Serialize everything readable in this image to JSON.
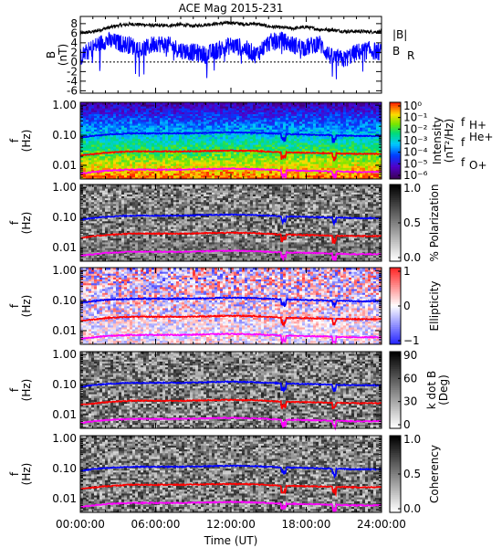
{
  "title": "ACE Mag 2015-231",
  "xlabel": "Time (UT)",
  "x_ticks": [
    "00:00:00",
    "06:00:00",
    "12:00:00",
    "18:00:00",
    "24:00:00"
  ],
  "colors": {
    "B_total": "#000000",
    "B_R": "#0000ff",
    "f_H": "#0000ff",
    "f_He": "#ff0000",
    "f_O": "#ff00ff"
  },
  "legend": {
    "top": [
      "|B|",
      "B_R"
    ],
    "gyro": [
      "f_H+",
      "f_He+",
      "f_O+"
    ]
  },
  "chart_data": [
    {
      "type": "line",
      "panel": "B",
      "ylabel": "B (nT)",
      "ylim": [
        -6.5,
        9.5
      ],
      "y_ticks": [
        -6,
        -4,
        -2,
        0,
        2,
        4,
        6,
        8
      ],
      "x_hours": [
        0,
        1,
        2,
        3,
        4,
        5,
        6,
        7,
        8,
        9,
        10,
        11,
        12,
        13,
        14,
        15,
        16,
        17,
        18,
        19,
        20,
        21,
        22,
        23,
        24
      ],
      "series": [
        {
          "name": "|B|",
          "values": [
            6.0,
            6.3,
            7.0,
            7.6,
            7.9,
            7.8,
            7.6,
            7.6,
            7.8,
            7.5,
            7.8,
            8.0,
            8.2,
            7.9,
            8.0,
            7.4,
            7.2,
            7.0,
            7.3,
            6.8,
            6.7,
            6.4,
            6.4,
            6.3,
            6.3
          ]
        },
        {
          "name": "B_R",
          "values": [
            1.0,
            3.0,
            4.5,
            4.0,
            3.5,
            2.5,
            4.0,
            3.5,
            2.5,
            2.0,
            1.5,
            2.5,
            3.5,
            3.0,
            1.5,
            4.0,
            4.5,
            3.5,
            3.0,
            4.0,
            1.0,
            0.5,
            2.0,
            2.5,
            2.0
          ]
        }
      ]
    },
    {
      "type": "heatmap",
      "panel": "Intensity",
      "ylabel": "f (Hz)",
      "y_scale": "log",
      "y_ticks": [
        "1.00",
        "0.10",
        "0.01"
      ],
      "colorbar_label": "Intensity (nT²/Hz)",
      "colorbar_ticks": [
        "10⁰",
        "10⁻¹",
        "10⁻²",
        "10⁻³",
        "10⁻⁴",
        "10⁻⁵",
        "10⁻⁶"
      ]
    },
    {
      "type": "heatmap",
      "panel": "Polarization",
      "ylabel": "f (Hz)",
      "y_scale": "log",
      "y_ticks": [
        "1.00",
        "0.10",
        "0.01"
      ],
      "colorbar_label": "% Polarization",
      "colorbar_ticks": [
        "1.0",
        "0.5",
        "0.0"
      ]
    },
    {
      "type": "heatmap",
      "panel": "Ellipticity",
      "ylabel": "f (Hz)",
      "y_scale": "log",
      "y_ticks": [
        "1.00",
        "0.10",
        "0.01"
      ],
      "colorbar_label": "Ellipticity",
      "colorbar_ticks": [
        "1",
        "0",
        "−1"
      ]
    },
    {
      "type": "heatmap",
      "panel": "kdotB",
      "ylabel": "f (Hz)",
      "y_scale": "log",
      "y_ticks": [
        "1.00",
        "0.10",
        "0.01"
      ],
      "colorbar_label": "k dot B (Deg)",
      "colorbar_ticks": [
        "90",
        "60",
        "30",
        "0"
      ]
    },
    {
      "type": "heatmap",
      "panel": "Coherency",
      "ylabel": "f (Hz)",
      "y_scale": "log",
      "y_ticks": [
        "1.00",
        "0.10",
        "0.01"
      ],
      "colorbar_label": "Coherency",
      "colorbar_ticks": [
        "1.0",
        "0.5",
        "0.0"
      ]
    }
  ],
  "gyrofrequency_lines": {
    "x_hours": [
      0,
      2,
      4,
      6,
      8,
      10,
      12,
      14,
      16,
      18,
      20,
      22,
      24
    ],
    "f_H+": [
      0.085,
      0.105,
      0.115,
      0.115,
      0.115,
      0.12,
      0.125,
      0.12,
      0.11,
      0.105,
      0.1,
      0.095,
      0.095
    ],
    "f_He+": [
      0.021,
      0.026,
      0.029,
      0.029,
      0.029,
      0.03,
      0.031,
      0.03,
      0.027,
      0.026,
      0.025,
      0.024,
      0.024
    ],
    "f_O+": [
      0.0053,
      0.0066,
      0.0072,
      0.0072,
      0.0072,
      0.0075,
      0.0078,
      0.0075,
      0.0069,
      0.0066,
      0.0063,
      0.006,
      0.006
    ]
  }
}
